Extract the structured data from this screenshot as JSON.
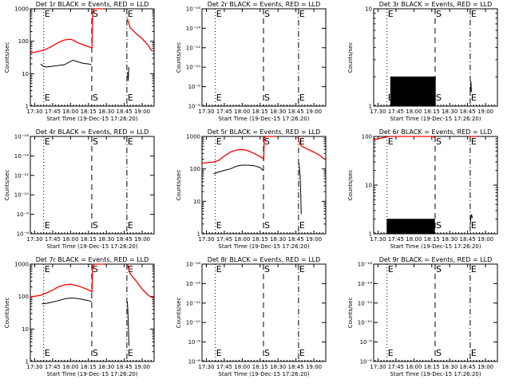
{
  "colors": {
    "events": "#000000",
    "lld": "#ff0000",
    "background": "#ffffff",
    "axis": "#000000"
  },
  "common": {
    "xticks": [
      "17:30",
      "17:45",
      "18:00",
      "18:15",
      "18:30",
      "18:45",
      "19:00"
    ],
    "xtick_minutes": [
      30,
      45,
      60,
      75,
      90,
      105,
      120
    ],
    "xlabel": "Start Time (19-Dec-15 17:26:20)",
    "ylabel": "Counts/sec",
    "xrange_minutes": [
      26.33,
      130
    ],
    "markers": [
      {
        "label": "E",
        "minute": 37.5,
        "style": "dotted"
      },
      {
        "label": "S",
        "minute": 77.8,
        "style": "dashed"
      },
      {
        "label": "E",
        "minute": 107.2,
        "style": "dashdot"
      }
    ]
  },
  "chart_data": [
    {
      "type": "line",
      "title": "Det 1r BLACK = Events, RED = LLD",
      "yscale": "log",
      "ylim": [
        1,
        1000
      ],
      "yticks": [
        "1",
        "10",
        "100",
        "1000"
      ],
      "series": [
        {
          "name": "LLD",
          "color": "red",
          "x": [
            26.3,
            30,
            35,
            40,
            45,
            50,
            55,
            60,
            63,
            66,
            70,
            75,
            78,
            78.5,
            80,
            83,
            86,
            88
          ],
          "y": [
            45,
            46,
            50,
            58,
            72,
            92,
            110,
            115,
            105,
            90,
            80,
            68,
            62,
            800,
            1000,
            1100,
            1150,
            1200
          ],
          "x2": [
            107.5,
            110,
            115,
            120,
            125,
            128
          ],
          "y2": [
            500,
            260,
            170,
            120,
            75,
            50
          ]
        },
        {
          "name": "Events",
          "color": "black",
          "x": [
            35,
            37,
            40,
            45,
            50,
            55,
            60,
            62,
            65,
            70,
            75,
            77.5
          ],
          "y": [
            20,
            17,
            16,
            17,
            18,
            19,
            24,
            26,
            24,
            21,
            20,
            19
          ],
          "x2": [
            107.8,
            108.3,
            108.8
          ],
          "y2": [
            11,
            6,
            16
          ]
        }
      ]
    },
    {
      "type": "line",
      "title": "Det 2r BLACK = Events, RED = LLD",
      "yscale": "log",
      "ylim": [
        1e-06,
        1e-16
      ],
      "yticks": [
        "10⁻⁶",
        "10⁻⁸",
        "10⁻¹⁰",
        "10⁻¹²",
        "10⁻¹⁴",
        "10⁻¹⁶"
      ],
      "series": []
    },
    {
      "type": "line",
      "title": "Det 3r BLACK = Events, RED = LLD",
      "yscale": "log",
      "ylim": [
        1,
        10
      ],
      "yticks": [
        "1",
        "10"
      ],
      "series": [
        {
          "name": "Events",
          "color": "black",
          "noise": {
            "from": 40.5,
            "to": 78,
            "low": 1,
            "high": 2,
            "step": 0.6
          },
          "x2": [
            107.2,
            107.8,
            108.2
          ],
          "y2": [
            1.3,
            1.8,
            1.4
          ]
        }
      ]
    },
    {
      "type": "line",
      "title": "Det 4r BLACK = Events, RED = LLD",
      "yscale": "log",
      "ylim": [
        1e-06,
        1e-16
      ],
      "yticks": [
        "10⁻⁶",
        "10⁻⁸",
        "10⁻¹⁰",
        "10⁻¹²",
        "10⁻¹⁴",
        "10⁻¹⁶"
      ],
      "series": []
    },
    {
      "type": "line",
      "title": "Det 5r BLACK = Events, RED = LLD",
      "yscale": "log",
      "ylim": [
        1,
        1000
      ],
      "yticks": [
        "1",
        "10",
        "100",
        "1000"
      ],
      "series": [
        {
          "name": "LLD",
          "color": "red",
          "x": [
            26.3,
            30,
            35,
            40,
            45,
            50,
            55,
            60,
            65,
            70,
            75,
            78,
            78.5,
            80,
            84,
            88
          ],
          "y": [
            150,
            155,
            160,
            180,
            250,
            330,
            380,
            400,
            360,
            300,
            240,
            200,
            900,
            1050,
            1150,
            1200
          ],
          "x2": [
            106.5,
            108,
            110,
            115,
            120,
            125,
            129
          ],
          "y2": [
            1100,
            600,
            500,
            400,
            330,
            260,
            200
          ]
        },
        {
          "name": "Events",
          "color": "black",
          "x": [
            36,
            40,
            45,
            50,
            55,
            60,
            65,
            70,
            75,
            77.5
          ],
          "y": [
            70,
            80,
            90,
            100,
            120,
            130,
            130,
            125,
            110,
            90
          ],
          "x2": [
            107.5,
            108,
            108.5,
            109,
            109.5
          ],
          "y2": [
            150,
            100,
            60,
            20,
            4
          ]
        }
      ]
    },
    {
      "type": "line",
      "title": "Det 6r BLACK = Events, RED = LLD",
      "yscale": "log",
      "ylim": [
        1,
        100
      ],
      "yticks": [
        "1",
        "10",
        "100"
      ],
      "series": [
        {
          "name": "LLD",
          "color": "red",
          "x": [
            26.3,
            30,
            35,
            40,
            45,
            50,
            55,
            60,
            65,
            70,
            75,
            78
          ],
          "y": [
            85,
            90,
            95,
            100,
            100,
            105,
            110,
            115,
            110,
            105,
            100,
            95
          ],
          "x2": [
            106.5,
            107.5,
            108.5,
            110,
            113
          ],
          "y2": [
            110,
            100,
            100,
            105,
            100
          ]
        },
        {
          "name": "Events",
          "color": "black",
          "noise": {
            "from": 37.5,
            "to": 77.5,
            "low": 1,
            "high": 2,
            "step": 0.55
          },
          "x2": [
            107.2,
            107.8,
            108.3,
            109
          ],
          "y2": [
            1.5,
            2.1,
            2.5,
            2.1
          ]
        }
      ]
    },
    {
      "type": "line",
      "title": "Det 7r BLACK = Events, RED = LLD",
      "yscale": "log",
      "ylim": [
        1,
        1000
      ],
      "yticks": [
        "1",
        "10",
        "100",
        "1000"
      ],
      "series": [
        {
          "name": "LLD",
          "color": "red",
          "x": [
            26.3,
            30,
            35,
            40,
            45,
            50,
            55,
            60,
            65,
            70,
            75,
            78,
            78.5,
            80,
            84,
            88
          ],
          "y": [
            100,
            102,
            110,
            130,
            160,
            200,
            230,
            240,
            220,
            190,
            160,
            140,
            850,
            1000,
            1100,
            1150
          ],
          "x2": [
            107.5,
            110,
            115,
            120,
            125,
            129
          ],
          "y2": [
            1000,
            500,
            300,
            170,
            110,
            90
          ]
        },
        {
          "name": "Events",
          "color": "black",
          "x": [
            36,
            40,
            45,
            50,
            55,
            60,
            65,
            70,
            75,
            77.5
          ],
          "y": [
            60,
            62,
            68,
            75,
            85,
            90,
            88,
            82,
            75,
            70
          ],
          "x2": [
            107.5,
            108,
            108.5,
            109
          ],
          "y2": [
            70,
            40,
            10,
            3
          ]
        }
      ]
    },
    {
      "type": "line",
      "title": "Det 8r BLACK = Events, RED = LLD",
      "yscale": "log",
      "ylim": [
        1e-06,
        1e-16
      ],
      "yticks": [
        "10⁻⁶",
        "10⁻⁸",
        "10⁻¹⁰",
        "10⁻¹²",
        "10⁻¹⁴",
        "10⁻¹⁶"
      ],
      "series": []
    },
    {
      "type": "line",
      "title": "Det 9r BLACK = Events, RED = LLD",
      "yscale": "log",
      "ylim": [
        1e-06,
        1e-16
      ],
      "yticks": [
        "10⁻⁶",
        "10⁻⁸",
        "10⁻¹⁰",
        "10⁻¹²",
        "10⁻¹⁴",
        "10⁻¹⁶"
      ],
      "series": []
    }
  ]
}
